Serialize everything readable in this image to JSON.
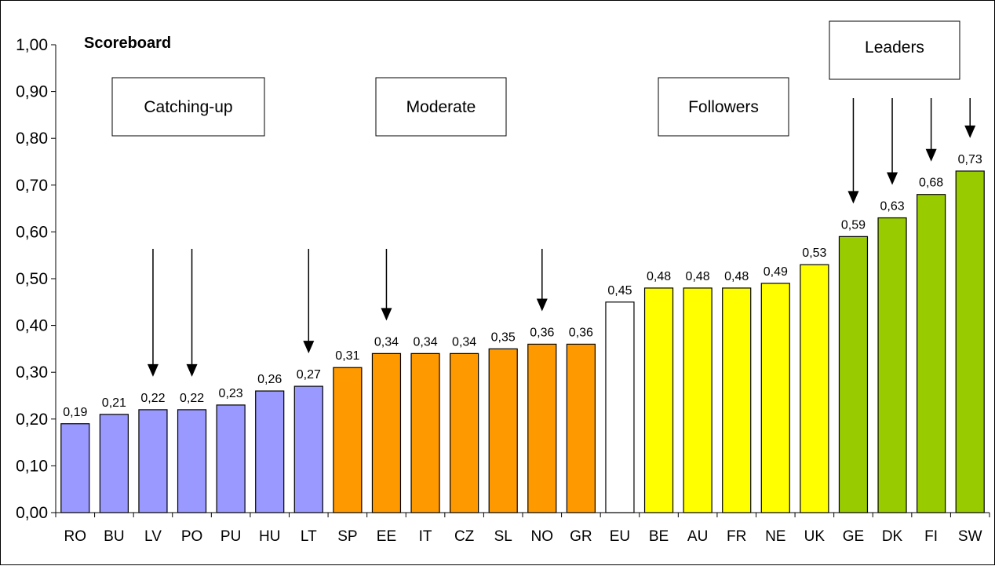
{
  "chart_data": {
    "type": "bar",
    "title": "Scoreboard",
    "xlabel": "",
    "ylabel": "",
    "ylim": [
      0,
      1
    ],
    "yticks": [
      "0,00",
      "0,10",
      "0,20",
      "0,30",
      "0,40",
      "0,50",
      "0,60",
      "0,70",
      "0,80",
      "0,90",
      "1,00"
    ],
    "grid": false,
    "categories": [
      "RO",
      "BU",
      "LV",
      "PO",
      "PU",
      "HU",
      "LT",
      "SP",
      "EE",
      "IT",
      "CZ",
      "SL",
      "NO",
      "GR",
      "EU",
      "BE",
      "AU",
      "FR",
      "NE",
      "UK",
      "GE",
      "DK",
      "FI",
      "SW"
    ],
    "values": [
      0.19,
      0.21,
      0.22,
      0.22,
      0.23,
      0.26,
      0.27,
      0.31,
      0.34,
      0.34,
      0.34,
      0.35,
      0.36,
      0.36,
      0.45,
      0.48,
      0.48,
      0.48,
      0.49,
      0.53,
      0.59,
      0.63,
      0.68,
      0.73
    ],
    "value_labels": [
      "0,19",
      "0,21",
      "0,22",
      "0,22",
      "0,23",
      "0,26",
      "0,27",
      "0,31",
      "0,34",
      "0,34",
      "0,34",
      "0,35",
      "0,36",
      "0,36",
      "0,45",
      "0,48",
      "0,48",
      "0,48",
      "0,49",
      "0,53",
      "0,59",
      "0,63",
      "0,68",
      "0,73"
    ],
    "colors": {
      "catching_up": "#9999ff",
      "moderate": "#ff9900",
      "eu": "#ffffff",
      "followers": "#ffff00",
      "leaders": "#99cc00"
    },
    "bar_groups": [
      "catching_up",
      "catching_up",
      "catching_up",
      "catching_up",
      "catching_up",
      "catching_up",
      "catching_up",
      "moderate",
      "moderate",
      "moderate",
      "moderate",
      "moderate",
      "moderate",
      "moderate",
      "eu",
      "followers",
      "followers",
      "followers",
      "followers",
      "followers",
      "leaders",
      "leaders",
      "leaders",
      "leaders"
    ],
    "annotations": {
      "catching_up": "Catching-up",
      "moderate": "Moderate",
      "followers": "Followers",
      "leaders": "Leaders"
    },
    "arrow_targets": [
      "LV",
      "PO",
      "LT",
      "EE",
      "NO",
      "GE",
      "DK",
      "FI",
      "SW"
    ]
  }
}
